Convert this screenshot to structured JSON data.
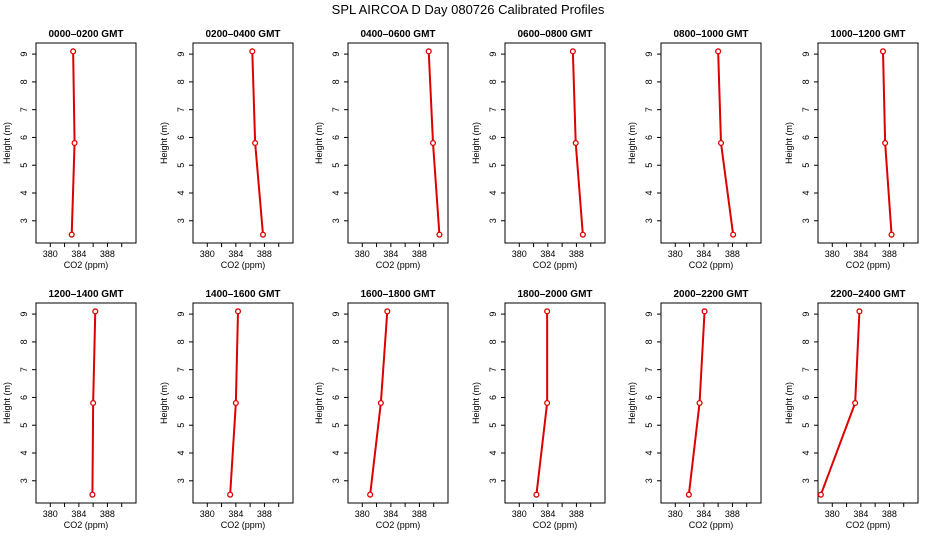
{
  "figure_title": "SPL AIRCOA D  Day 080726  Calibrated Profiles",
  "colors": {
    "series": "#dd0000",
    "axis": "#000000"
  },
  "chart_data": [
    {
      "type": "line",
      "title": "0000–0200 GMT",
      "xlabel": "CO2 (ppm)",
      "ylabel": "Height (m)",
      "xlim": [
        378,
        392
      ],
      "ylim": [
        2.2,
        9.4
      ],
      "x_ticks": [
        380,
        384,
        388
      ],
      "y_ticks": [
        3,
        4,
        5,
        6,
        7,
        8,
        9
      ],
      "series": [
        {
          "x": [
            383.0,
            383.4,
            383.2
          ],
          "y": [
            2.5,
            5.8,
            9.1
          ]
        }
      ]
    },
    {
      "type": "line",
      "title": "0200–0400 GMT",
      "xlabel": "CO2 (ppm)",
      "ylabel": "Height (m)",
      "xlim": [
        378,
        392
      ],
      "ylim": [
        2.2,
        9.4
      ],
      "x_ticks": [
        380,
        384,
        388
      ],
      "y_ticks": [
        3,
        4,
        5,
        6,
        7,
        8,
        9
      ],
      "series": [
        {
          "x": [
            387.8,
            386.7,
            386.3
          ],
          "y": [
            2.5,
            5.8,
            9.1
          ]
        }
      ]
    },
    {
      "type": "line",
      "title": "0400–0600 GMT",
      "xlabel": "CO2 (ppm)",
      "ylabel": "Height (m)",
      "xlim": [
        378,
        392
      ],
      "ylim": [
        2.2,
        9.4
      ],
      "x_ticks": [
        380,
        384,
        388
      ],
      "y_ticks": [
        3,
        4,
        5,
        6,
        7,
        8,
        9
      ],
      "series": [
        {
          "x": [
            390.8,
            389.9,
            389.3
          ],
          "y": [
            2.5,
            5.8,
            9.1
          ]
        }
      ]
    },
    {
      "type": "line",
      "title": "0600–0800 GMT",
      "xlabel": "CO2 (ppm)",
      "ylabel": "Height (m)",
      "xlim": [
        378,
        392
      ],
      "ylim": [
        2.2,
        9.4
      ],
      "x_ticks": [
        380,
        384,
        388
      ],
      "y_ticks": [
        3,
        4,
        5,
        6,
        7,
        8,
        9
      ],
      "series": [
        {
          "x": [
            388.9,
            387.9,
            387.5
          ],
          "y": [
            2.5,
            5.8,
            9.1
          ]
        }
      ]
    },
    {
      "type": "line",
      "title": "0800–1000 GMT",
      "xlabel": "CO2 (ppm)",
      "ylabel": "Height (m)",
      "xlim": [
        378,
        392
      ],
      "ylim": [
        2.2,
        9.4
      ],
      "x_ticks": [
        380,
        384,
        388
      ],
      "y_ticks": [
        3,
        4,
        5,
        6,
        7,
        8,
        9
      ],
      "series": [
        {
          "x": [
            388.1,
            386.4,
            386.0
          ],
          "y": [
            2.5,
            5.8,
            9.1
          ]
        }
      ]
    },
    {
      "type": "line",
      "title": "1000–1200 GMT",
      "xlabel": "CO2 (ppm)",
      "ylabel": "Height (m)",
      "xlim": [
        378,
        392
      ],
      "ylim": [
        2.2,
        9.4
      ],
      "x_ticks": [
        380,
        384,
        388
      ],
      "y_ticks": [
        3,
        4,
        5,
        6,
        7,
        8,
        9
      ],
      "series": [
        {
          "x": [
            388.3,
            387.4,
            387.1
          ],
          "y": [
            2.5,
            5.8,
            9.1
          ]
        }
      ]
    },
    {
      "type": "line",
      "title": "1200–1400 GMT",
      "xlabel": "CO2 (ppm)",
      "ylabel": "Height (m)",
      "xlim": [
        378,
        392
      ],
      "ylim": [
        2.2,
        9.4
      ],
      "x_ticks": [
        380,
        384,
        388
      ],
      "y_ticks": [
        3,
        4,
        5,
        6,
        7,
        8,
        9
      ],
      "series": [
        {
          "x": [
            385.9,
            386.0,
            386.3
          ],
          "y": [
            2.5,
            5.8,
            9.1
          ]
        }
      ]
    },
    {
      "type": "line",
      "title": "1400–1600 GMT",
      "xlabel": "CO2 (ppm)",
      "ylabel": "Height (m)",
      "xlim": [
        378,
        392
      ],
      "ylim": [
        2.2,
        9.4
      ],
      "x_ticks": [
        380,
        384,
        388
      ],
      "y_ticks": [
        3,
        4,
        5,
        6,
        7,
        8,
        9
      ],
      "series": [
        {
          "x": [
            383.2,
            384.0,
            384.3
          ],
          "y": [
            2.5,
            5.8,
            9.1
          ]
        }
      ]
    },
    {
      "type": "line",
      "title": "1600–1800 GMT",
      "xlabel": "CO2 (ppm)",
      "ylabel": "Height (m)",
      "xlim": [
        378,
        392
      ],
      "ylim": [
        2.2,
        9.4
      ],
      "x_ticks": [
        380,
        384,
        388
      ],
      "y_ticks": [
        3,
        4,
        5,
        6,
        7,
        8,
        9
      ],
      "series": [
        {
          "x": [
            381.1,
            382.6,
            383.5
          ],
          "y": [
            2.5,
            5.8,
            9.1
          ]
        }
      ]
    },
    {
      "type": "line",
      "title": "1800–2000 GMT",
      "xlabel": "CO2 (ppm)",
      "ylabel": "Height (m)",
      "xlim": [
        378,
        392
      ],
      "ylim": [
        2.2,
        9.4
      ],
      "x_ticks": [
        380,
        384,
        388
      ],
      "y_ticks": [
        3,
        4,
        5,
        6,
        7,
        8,
        9
      ],
      "series": [
        {
          "x": [
            382.4,
            383.9,
            383.9
          ],
          "y": [
            2.5,
            5.8,
            9.1
          ]
        }
      ]
    },
    {
      "type": "line",
      "title": "2000–2200 GMT",
      "xlabel": "CO2 (ppm)",
      "ylabel": "Height (m)",
      "xlim": [
        378,
        392
      ],
      "ylim": [
        2.2,
        9.4
      ],
      "x_ticks": [
        380,
        384,
        388
      ],
      "y_ticks": [
        3,
        4,
        5,
        6,
        7,
        8,
        9
      ],
      "series": [
        {
          "x": [
            381.9,
            383.4,
            384.1
          ],
          "y": [
            2.5,
            5.8,
            9.1
          ]
        }
      ]
    },
    {
      "type": "line",
      "title": "2200–2400 GMT",
      "xlabel": "CO2 (ppm)",
      "ylabel": "Height (m)",
      "xlim": [
        378,
        392
      ],
      "ylim": [
        2.2,
        9.4
      ],
      "x_ticks": [
        380,
        384,
        388
      ],
      "y_ticks": [
        3,
        4,
        5,
        6,
        7,
        8,
        9
      ],
      "series": [
        {
          "x": [
            378.4,
            383.2,
            383.8
          ],
          "y": [
            2.5,
            5.8,
            9.1
          ]
        }
      ]
    }
  ]
}
